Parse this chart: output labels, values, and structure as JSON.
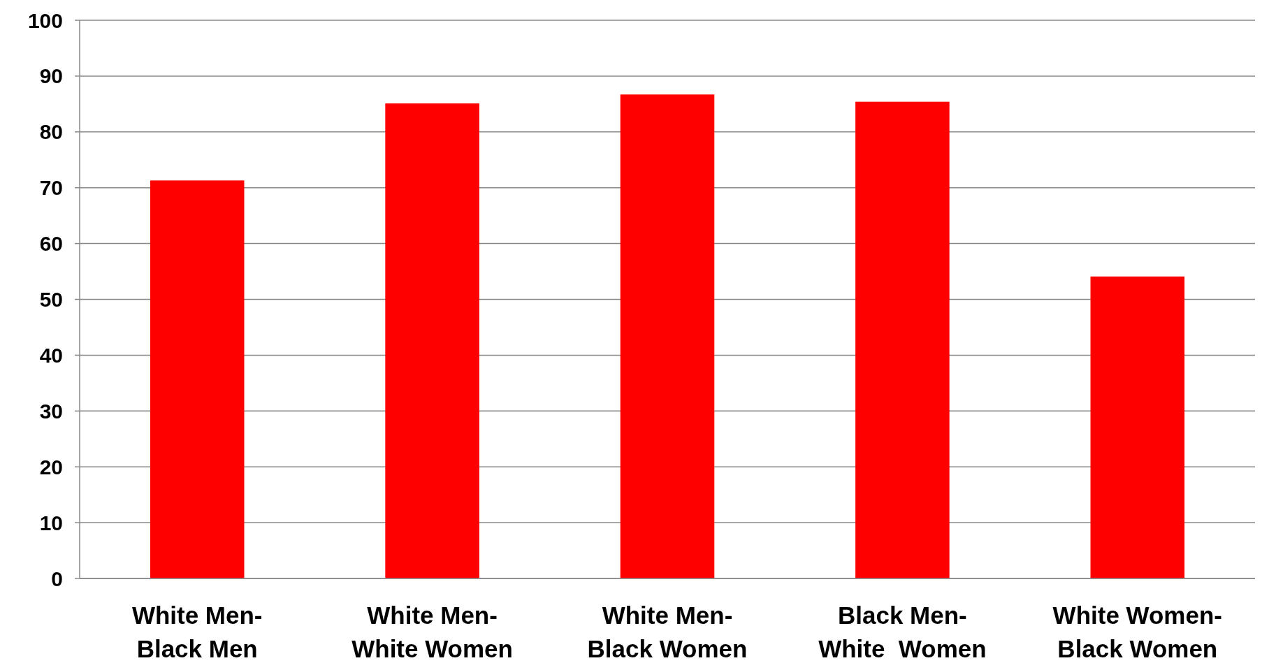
{
  "chart_data": {
    "type": "bar",
    "categories": [
      "White Men-Black Men",
      "White Men-White Women",
      "White Men-Black Women",
      "Black Men-White  Women",
      "White Women-Black Women"
    ],
    "values": [
      71.3,
      85.1,
      86.7,
      85.4,
      54.1
    ],
    "color": "#ff0000",
    "ylim": [
      0,
      100
    ],
    "yticks": [
      0,
      10,
      20,
      30,
      40,
      50,
      60,
      70,
      80,
      90,
      100
    ],
    "grid": "y"
  }
}
